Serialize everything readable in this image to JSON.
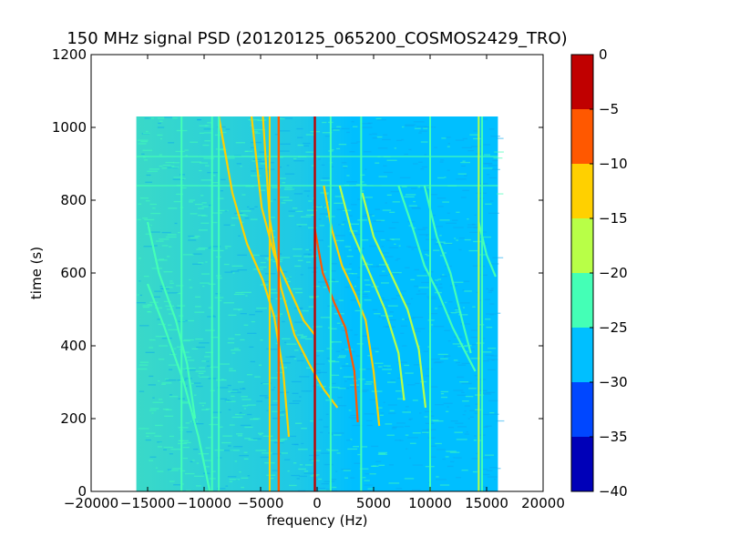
{
  "chart_data": {
    "type": "heatmap",
    "title": "150 MHz signal PSD (20120125_065200_COSMOS2429_TRO)",
    "xlabel": "frequency (Hz)",
    "ylabel": "time (s)",
    "xlim": [
      -20000,
      20000
    ],
    "ylim": [
      0,
      1200
    ],
    "xticks": [
      -20000,
      -15000,
      -10000,
      -5000,
      0,
      5000,
      10000,
      15000,
      20000
    ],
    "xtick_labels": [
      "−20000",
      "−15000",
      "−10000",
      "−5000",
      "0",
      "5000",
      "10000",
      "15000",
      "20000"
    ],
    "yticks": [
      0,
      200,
      400,
      600,
      800,
      1000,
      1200
    ],
    "ytick_labels": [
      "0",
      "200",
      "400",
      "600",
      "800",
      "1000",
      "1200"
    ],
    "data_extent": {
      "x": [
        -16000,
        16000
      ],
      "y": [
        0,
        1030
      ]
    },
    "background_level": "-30 to -25 (right), -25 to -20 (left)",
    "vertical_lines": [
      {
        "x": -12000,
        "level": "-25 to -20"
      },
      {
        "x": -9300,
        "level": "-25 to -20"
      },
      {
        "x": -8700,
        "level": "-25 to -20"
      },
      {
        "x": -4200,
        "level": "-15 to -10"
      },
      {
        "x": -3400,
        "level": "-10 to -5"
      },
      {
        "x": -200,
        "level": "-5 to 0"
      },
      {
        "x": 1200,
        "level": "-25 to -20"
      },
      {
        "x": 3900,
        "level": "-25 to -20"
      },
      {
        "x": 10000,
        "level": "-25 to -20"
      },
      {
        "x": 14300,
        "level": "-20 to -15"
      },
      {
        "x": 14600,
        "level": "-25 to -20"
      }
    ],
    "horizontal_lines": [
      {
        "y": 840,
        "level": "-25 to -20"
      },
      {
        "y": 920,
        "level": "-25 to -20"
      }
    ],
    "traces": [
      {
        "level": "-25 to -20",
        "points": [
          [
            -15000,
            740
          ],
          [
            -14000,
            600
          ],
          [
            -12500,
            470
          ],
          [
            -11500,
            350
          ],
          [
            -10800,
            200
          ]
        ]
      },
      {
        "level": "-25 to -20",
        "points": [
          [
            -15000,
            570
          ],
          [
            -13500,
            450
          ],
          [
            -11800,
            300
          ],
          [
            -10500,
            150
          ],
          [
            -9500,
            0
          ]
        ]
      },
      {
        "level": "-15 to -10",
        "points": [
          [
            -8700,
            1030
          ],
          [
            -7500,
            820
          ],
          [
            -6200,
            680
          ],
          [
            -4800,
            580
          ],
          [
            -3800,
            480
          ],
          [
            -3000,
            330
          ],
          [
            -2500,
            150
          ]
        ]
      },
      {
        "level": "-15 to -10",
        "points": [
          [
            -5800,
            1030
          ],
          [
            -4900,
            780
          ],
          [
            -3800,
            650
          ],
          [
            -2500,
            560
          ],
          [
            -1200,
            470
          ],
          [
            -200,
            430
          ]
        ]
      },
      {
        "level": "-10 to -5",
        "points": [
          [
            -200,
            720
          ],
          [
            500,
            600
          ],
          [
            1500,
            520
          ],
          [
            2500,
            450
          ],
          [
            3300,
            330
          ],
          [
            3600,
            190
          ]
        ]
      },
      {
        "level": "-15 to -10",
        "points": [
          [
            -4800,
            1030
          ],
          [
            -4200,
            750
          ],
          [
            -3200,
            560
          ],
          [
            -2000,
            430
          ],
          [
            -700,
            350
          ],
          [
            600,
            280
          ],
          [
            1800,
            230
          ]
        ]
      },
      {
        "level": "-15 to -10",
        "points": [
          [
            600,
            840
          ],
          [
            1300,
            720
          ],
          [
            2200,
            620
          ],
          [
            3400,
            540
          ],
          [
            4300,
            470
          ],
          [
            5000,
            330
          ],
          [
            5500,
            180
          ]
        ]
      },
      {
        "level": "-20 to -15",
        "points": [
          [
            2000,
            840
          ],
          [
            3000,
            720
          ],
          [
            4500,
            610
          ],
          [
            6000,
            500
          ],
          [
            7200,
            380
          ],
          [
            7700,
            250
          ]
        ]
      },
      {
        "level": "-20 to -15",
        "points": [
          [
            4000,
            820
          ],
          [
            5000,
            700
          ],
          [
            6500,
            600
          ],
          [
            8000,
            500
          ],
          [
            9000,
            390
          ],
          [
            9600,
            230
          ]
        ]
      },
      {
        "level": "-25 to -20",
        "points": [
          [
            7200,
            840
          ],
          [
            8500,
            720
          ],
          [
            9500,
            620
          ],
          [
            10800,
            540
          ],
          [
            12000,
            450
          ],
          [
            13000,
            390
          ],
          [
            14000,
            330
          ]
        ]
      },
      {
        "level": "-25 to -20",
        "points": [
          [
            9500,
            840
          ],
          [
            10600,
            700
          ],
          [
            11800,
            600
          ],
          [
            13000,
            450
          ],
          [
            13600,
            380
          ]
        ]
      },
      {
        "level": "-25 to -20",
        "points": [
          [
            14300,
            740
          ],
          [
            15000,
            650
          ],
          [
            15800,
            590
          ]
        ]
      }
    ],
    "colorbar": {
      "levels": [
        -40,
        -35,
        -30,
        -25,
        -20,
        -15,
        -10,
        -5,
        0
      ],
      "tick_labels": [
        "−40",
        "−35",
        "−30",
        "−25",
        "−20",
        "−15",
        "−10",
        "−5",
        "0"
      ],
      "colors": [
        "#0000b8",
        "#0047ff",
        "#00bfff",
        "#44ffb6",
        "#b8ff47",
        "#ffd000",
        "#ff5800",
        "#c00000"
      ]
    }
  }
}
